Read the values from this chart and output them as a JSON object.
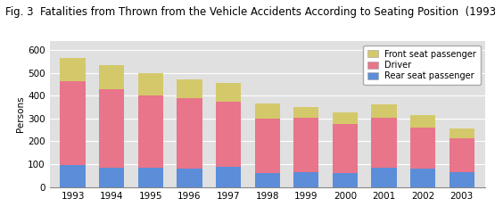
{
  "years": [
    "1993",
    "1994",
    "1995",
    "1996",
    "1997",
    "1998",
    "1999",
    "2000",
    "2001",
    "2002",
    "2003"
  ],
  "rear_seat": [
    95,
    85,
    85,
    80,
    90,
    60,
    65,
    60,
    85,
    80,
    65
  ],
  "driver": [
    370,
    345,
    315,
    310,
    285,
    240,
    240,
    215,
    220,
    180,
    148
  ],
  "front_seat": [
    100,
    105,
    100,
    80,
    80,
    65,
    45,
    50,
    55,
    55,
    42
  ],
  "color_rear": "#5b8dd9",
  "color_driver": "#e8758a",
  "color_front": "#d4c96a",
  "bg_color": "#e0e0e0",
  "title": "Fig. 3  Fatalities from Thrown from the Vehicle Accidents According to Seating Position  (1993 to 2003)",
  "ylabel": "Persons",
  "ylim": [
    0,
    640
  ],
  "yticks": [
    0,
    100,
    200,
    300,
    400,
    500,
    600
  ],
  "legend_labels": [
    "Front seat passenger",
    "Driver",
    "Rear seat passenger"
  ],
  "title_fontsize": 8.5,
  "axis_fontsize": 7.5
}
